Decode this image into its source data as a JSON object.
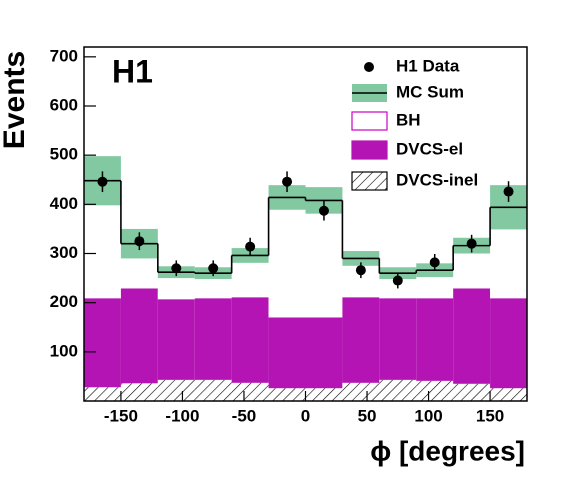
{
  "chart_data": {
    "type": "histogram",
    "label": "H1",
    "xlabel": "ϕ [degrees]",
    "ylabel": "Events",
    "bins": [
      -180,
      -150,
      -120,
      -90,
      -60,
      -30,
      0,
      30,
      60,
      90,
      120,
      150,
      180
    ],
    "xlim": [
      -180,
      180
    ],
    "ylim": [
      0,
      720
    ],
    "xticks": [
      -150,
      -100,
      -50,
      0,
      50,
      100,
      150
    ],
    "yticks": [
      100,
      200,
      300,
      400,
      500,
      600,
      700
    ],
    "legend": "upper right",
    "series": [
      {
        "name": "H1 Data",
        "style": "points",
        "color": "#000000",
        "values": [
          446,
          325,
          270,
          270,
          314,
          446,
          387,
          266,
          245,
          282,
          320,
          426
        ],
        "errors": [
          21,
          18,
          16,
          16,
          18,
          21,
          20,
          16,
          16,
          17,
          18,
          21
        ]
      },
      {
        "name": "MC Sum",
        "style": "band",
        "color": "#82c9a2",
        "line_color": "#000000",
        "values": [
          448,
          320,
          262,
          260,
          296,
          414,
          408,
          290,
          260,
          266,
          316,
          394
        ],
        "errors": [
          50,
          30,
          12,
          12,
          15,
          25,
          27,
          15,
          12,
          14,
          16,
          45
        ]
      },
      {
        "name": "BH",
        "style": "stack",
        "color": "#ffffff",
        "edge_color": "#cc00cc",
        "values": [
          239,
          91,
          55,
          51,
          85,
          244,
          238,
          79,
          51,
          57,
          87,
          185
        ]
      },
      {
        "name": "DVCS-el",
        "style": "stack",
        "color": "#b414b4",
        "values": [
          181,
          193,
          164,
          166,
          174,
          144,
          144,
          174,
          166,
          168,
          194,
          183
        ]
      },
      {
        "name": "DVCS-inel",
        "style": "stack",
        "color": "#000000",
        "hatch": true,
        "values": [
          28,
          36,
          43,
          43,
          37,
          26,
          26,
          37,
          43,
          41,
          35,
          26
        ]
      }
    ]
  }
}
